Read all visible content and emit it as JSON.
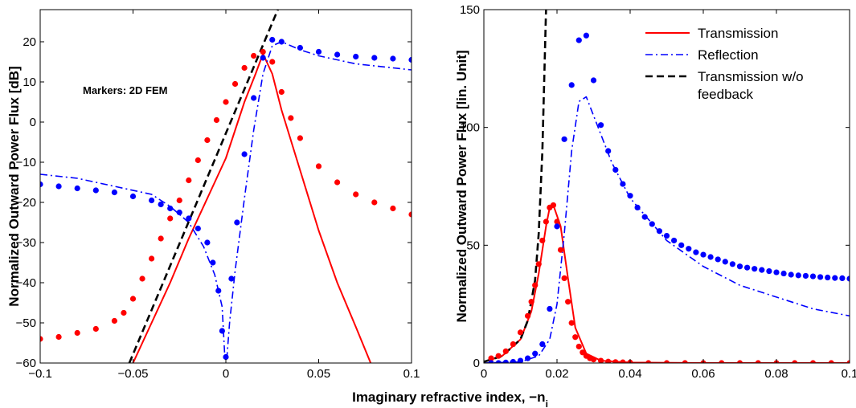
{
  "colors": {
    "transmission": "#ff0000",
    "reflection": "#0000ff",
    "no_feedback": "#000000"
  },
  "shared_xlabel": "Imaginary refractive index, −n",
  "shared_xlabel_subscript": "i",
  "chart_data": [
    {
      "type": "line",
      "ylabel": "Normalized Outward Power Flux [dB]",
      "xlim": [
        -0.1,
        0.1
      ],
      "ylim": [
        -60,
        28
      ],
      "xticks": [
        -0.1,
        -0.05,
        0,
        0.05,
        0.1
      ],
      "xtick_labels": [
        "−0.1",
        "−0.05",
        "0",
        "0.05",
        "0.1"
      ],
      "yticks": [
        -60,
        -50,
        -40,
        -30,
        -20,
        -10,
        0,
        10,
        20
      ],
      "ytick_labels": [
        "−60",
        "−50",
        "−40",
        "−30",
        "−20",
        "−10",
        "0",
        "10",
        "20"
      ],
      "annotation": "Markers: 2D FEM",
      "grid": false,
      "series": [
        {
          "name": "Transmission",
          "style": "solid",
          "color": "#ff0000",
          "x": [
            -0.05,
            -0.04,
            -0.03,
            -0.02,
            -0.01,
            0,
            0.01,
            0.016,
            0.02,
            0.025,
            0.03,
            0.04,
            0.05,
            0.06,
            0.07,
            0.078
          ],
          "y": [
            -60,
            -50,
            -40,
            -29,
            -19,
            -9,
            5,
            12,
            17,
            12,
            3,
            -12,
            -27,
            -40,
            -51,
            -60
          ]
        },
        {
          "name": "Reflection",
          "style": "dashdot",
          "color": "#0000ff",
          "x": [
            -0.1,
            -0.08,
            -0.06,
            -0.04,
            -0.03,
            -0.02,
            -0.012,
            -0.006,
            -0.002,
            -0.0005,
            0.0005,
            0.002,
            0.005,
            0.01,
            0.015,
            0.02,
            0.025,
            0.03,
            0.04,
            0.05,
            0.06,
            0.07,
            0.08,
            0.09,
            0.1
          ],
          "y": [
            -13,
            -14,
            -16,
            -18,
            -21,
            -25,
            -31,
            -38,
            -46,
            -59,
            -59,
            -50,
            -37,
            -19,
            -2,
            12,
            19,
            20,
            18,
            16.5,
            15.5,
            14.5,
            14,
            13.5,
            13
          ]
        },
        {
          "name": "Transmission w/o feedback",
          "style": "dashed",
          "color": "#000000",
          "x": [
            -0.052,
            0.028
          ],
          "y": [
            -60,
            28
          ]
        },
        {
          "name": "Transmission (2D FEM)",
          "style": "markers",
          "color": "#ff0000",
          "x": [
            -0.1,
            -0.09,
            -0.08,
            -0.07,
            -0.06,
            -0.055,
            -0.05,
            -0.045,
            -0.04,
            -0.035,
            -0.03,
            -0.025,
            -0.02,
            -0.015,
            -0.01,
            -0.005,
            0,
            0.005,
            0.01,
            0.015,
            0.02,
            0.025,
            0.03,
            0.035,
            0.04,
            0.05,
            0.06,
            0.07,
            0.08,
            0.09,
            0.1
          ],
          "y": [
            -54,
            -53.5,
            -52.5,
            -51.5,
            -49.5,
            -47.5,
            -44,
            -39,
            -34,
            -29,
            -24,
            -19.5,
            -14.5,
            -9.5,
            -4.5,
            0.5,
            5,
            9.5,
            13.5,
            16.5,
            17.5,
            15,
            7.5,
            1,
            -4,
            -11,
            -15,
            -18,
            -20,
            -21.5,
            -23
          ]
        },
        {
          "name": "Reflection (2D FEM)",
          "style": "markers",
          "color": "#0000ff",
          "x": [
            -0.1,
            -0.09,
            -0.08,
            -0.07,
            -0.06,
            -0.05,
            -0.04,
            -0.035,
            -0.03,
            -0.025,
            -0.02,
            -0.015,
            -0.01,
            -0.007,
            -0.004,
            -0.002,
            0,
            0.003,
            0.006,
            0.01,
            0.015,
            0.02,
            0.025,
            0.03,
            0.04,
            0.05,
            0.06,
            0.07,
            0.08,
            0.09,
            0.1
          ],
          "y": [
            -15.5,
            -16,
            -16.5,
            -17,
            -17.5,
            -18.5,
            -19.5,
            -20.5,
            -21.5,
            -22.5,
            -24,
            -26.5,
            -30,
            -35,
            -42,
            -52,
            -58.5,
            -39,
            -25,
            -8,
            6,
            16,
            20.5,
            20,
            18.5,
            17.5,
            16.8,
            16.3,
            16,
            15.8,
            15.5
          ]
        }
      ]
    },
    {
      "type": "line",
      "ylabel": "Normalized Outward Power Flux [lin. Unit]",
      "xlim": [
        0,
        0.1
      ],
      "ylim": [
        0,
        150
      ],
      "xticks": [
        0,
        0.02,
        0.04,
        0.06,
        0.08,
        0.1
      ],
      "xtick_labels": [
        "0",
        "0.02",
        "0.04",
        "0.06",
        "0.08",
        "0.1"
      ],
      "yticks": [
        0,
        50,
        100,
        150
      ],
      "ytick_labels": [
        "0",
        "50",
        "100",
        "150"
      ],
      "legend_position": "top-right",
      "grid": false,
      "series": [
        {
          "name": "Transmission",
          "style": "solid",
          "color": "#ff0000",
          "x": [
            0,
            0.005,
            0.01,
            0.013,
            0.015,
            0.017,
            0.018,
            0.019,
            0.021,
            0.023,
            0.025,
            0.028,
            0.032,
            0.04,
            0.06,
            0.08,
            0.1
          ],
          "y": [
            0.5,
            3,
            10,
            22,
            38,
            58,
            66,
            67,
            58,
            36,
            15,
            4,
            1,
            0.2,
            0,
            0,
            0
          ]
        },
        {
          "name": "Reflection",
          "style": "dashdot",
          "color": "#0000ff",
          "x": [
            0,
            0.01,
            0.015,
            0.018,
            0.02,
            0.022,
            0.024,
            0.026,
            0.028,
            0.03,
            0.035,
            0.04,
            0.05,
            0.06,
            0.07,
            0.08,
            0.09,
            0.1
          ],
          "y": [
            0,
            0.5,
            3,
            10,
            25,
            55,
            90,
            111,
            113,
            105,
            85,
            70,
            52,
            41,
            33,
            28,
            23,
            20
          ]
        },
        {
          "name": "Transmission w/o feedback",
          "style": "dashed",
          "color": "#000000",
          "x": [
            0,
            0.005,
            0.01,
            0.012,
            0.014,
            0.015,
            0.016,
            0.0165,
            0.017
          ],
          "y": [
            0.5,
            3,
            10,
            18,
            35,
            55,
            90,
            120,
            150
          ]
        },
        {
          "name": "Transmission (2D FEM)",
          "style": "markers",
          "color": "#ff0000",
          "x": [
            0.002,
            0.004,
            0.006,
            0.008,
            0.01,
            0.012,
            0.013,
            0.014,
            0.015,
            0.016,
            0.017,
            0.018,
            0.019,
            0.02,
            0.021,
            0.022,
            0.023,
            0.024,
            0.025,
            0.026,
            0.027,
            0.028,
            0.029,
            0.03,
            0.032,
            0.034,
            0.036,
            0.038,
            0.04,
            0.045,
            0.05,
            0.055,
            0.06,
            0.065,
            0.07,
            0.075,
            0.08,
            0.085,
            0.09,
            0.095,
            0.1
          ],
          "y": [
            2,
            3,
            5,
            8,
            13,
            20,
            26,
            33,
            42,
            52,
            60,
            66,
            67,
            60,
            48,
            36,
            26,
            17,
            11,
            7,
            4.5,
            3,
            2,
            1.5,
            1,
            0.6,
            0.4,
            0.3,
            0.2,
            0,
            0,
            0,
            0,
            0,
            0,
            0,
            0,
            0,
            0,
            0,
            0
          ]
        },
        {
          "name": "Reflection (2D FEM)",
          "style": "markers",
          "color": "#0000ff",
          "x": [
            0.002,
            0.004,
            0.006,
            0.008,
            0.01,
            0.012,
            0.014,
            0.016,
            0.018,
            0.02,
            0.022,
            0.024,
            0.026,
            0.028,
            0.03,
            0.032,
            0.034,
            0.036,
            0.038,
            0.04,
            0.042,
            0.044,
            0.046,
            0.048,
            0.05,
            0.052,
            0.054,
            0.056,
            0.058,
            0.06,
            0.062,
            0.064,
            0.066,
            0.068,
            0.07,
            0.072,
            0.074,
            0.076,
            0.078,
            0.08,
            0.082,
            0.084,
            0.086,
            0.088,
            0.09,
            0.092,
            0.094,
            0.096,
            0.098,
            0.1
          ],
          "y": [
            0,
            0,
            0.2,
            0.5,
            1,
            2,
            4,
            8,
            23,
            58,
            95,
            118,
            137,
            139,
            120,
            101,
            90,
            82,
            76,
            71,
            66,
            62,
            59,
            56,
            54,
            52,
            50,
            48.5,
            47,
            46,
            45,
            44,
            43,
            42,
            41,
            40.5,
            40,
            39.5,
            39,
            38.5,
            38,
            37.5,
            37.2,
            37,
            36.8,
            36.5,
            36.3,
            36.1,
            36,
            35.8
          ]
        }
      ],
      "legend": [
        {
          "label": "Transmission",
          "style": "solid",
          "color": "#ff0000"
        },
        {
          "label": "Reflection",
          "style": "dashdot",
          "color": "#0000ff"
        },
        {
          "label_lines": [
            "Transmission w/o",
            "feedback"
          ],
          "style": "dashed",
          "color": "#000000"
        }
      ]
    }
  ]
}
